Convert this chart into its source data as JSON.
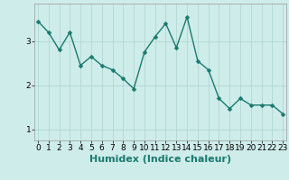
{
  "x": [
    0,
    1,
    2,
    3,
    4,
    5,
    6,
    7,
    8,
    9,
    10,
    11,
    12,
    13,
    14,
    15,
    16,
    17,
    18,
    19,
    20,
    21,
    22,
    23
  ],
  "y": [
    3.45,
    3.2,
    2.8,
    3.2,
    2.45,
    2.65,
    2.45,
    2.35,
    2.15,
    1.92,
    2.75,
    3.1,
    3.4,
    2.85,
    3.55,
    2.55,
    2.35,
    1.7,
    1.47,
    1.7,
    1.55,
    1.55,
    1.55,
    1.35
  ],
  "line_color": "#1a7a6e",
  "marker": "D",
  "marker_size": 2.5,
  "line_width": 1.0,
  "bg_color": "#ceecea",
  "grid_color": "#b0d8d4",
  "xlabel": "Humidex (Indice chaleur)",
  "xlabel_fontsize": 8,
  "yticks": [
    1,
    2,
    3
  ],
  "xticks": [
    0,
    1,
    2,
    3,
    4,
    5,
    6,
    7,
    8,
    9,
    10,
    11,
    12,
    13,
    14,
    15,
    16,
    17,
    18,
    19,
    20,
    21,
    22,
    23
  ],
  "xlim": [
    -0.3,
    23.3
  ],
  "ylim": [
    0.75,
    3.85
  ],
  "tick_fontsize": 6.5,
  "xlabel_fontweight": "bold"
}
